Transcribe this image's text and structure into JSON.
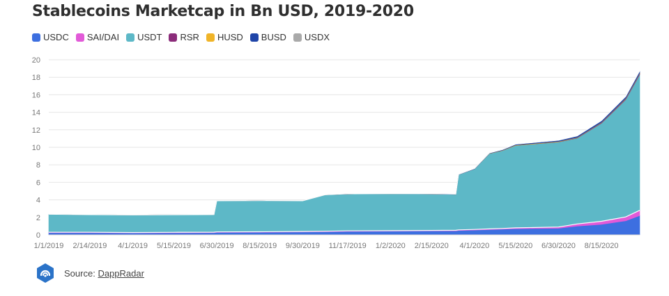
{
  "title": "Stablecoins Marketcap in Bn USD, 2019-2020",
  "source": {
    "label": "Source:",
    "link_text": "DappRadar"
  },
  "colors": {
    "USDC": "#3d6fe0",
    "SAI/DAI": "#e25ad8",
    "USDT": "#5db8c7",
    "RSR": "#8b2c7a",
    "HUSD": "#f0b428",
    "BUSD": "#1f45a8",
    "USDX": "#a9a9a9",
    "logo": "#2b73c8"
  },
  "chart_data": {
    "type": "area",
    "title": "Stablecoins Marketcap in Bn USD, 2019-2020",
    "xlabel": "",
    "ylabel": "",
    "stacked": true,
    "ylim": [
      0,
      20
    ],
    "yticks": [
      "0",
      "2",
      "4",
      "6",
      "8",
      "10",
      "12",
      "14",
      "16",
      "18",
      "20"
    ],
    "xticks": [
      "1/1/2019",
      "2/14/2019",
      "4/1/2019",
      "5/15/2019",
      "6/30/2019",
      "8/15/2019",
      "9/30/2019",
      "11/17/2019",
      "1/2/2020",
      "2/15/2020",
      "4/1/2020",
      "5/15/2020",
      "6/30/2020",
      "8/15/2020"
    ],
    "legend": [
      "USDC",
      "SAI/DAI",
      "USDT",
      "RSR",
      "HUSD",
      "BUSD",
      "USDX"
    ],
    "legend_position": "top-left",
    "grid": true,
    "x": [
      "1/1/2019",
      "2/14/2019",
      "4/1/2019",
      "5/15/2019",
      "6/27/2019",
      "6/30/2019",
      "8/15/2019",
      "9/30/2019",
      "10/24/2019",
      "11/17/2019",
      "1/2/2020",
      "2/15/2020",
      "3/12/2020",
      "3/15/2020",
      "4/1/2020",
      "4/17/2020",
      "5/1/2020",
      "5/15/2020",
      "6/30/2020",
      "7/20/2020",
      "8/15/2020",
      "9/10/2020",
      "9/25/2020"
    ],
    "series": [
      {
        "name": "USDC",
        "values": [
          0.25,
          0.25,
          0.22,
          0.23,
          0.25,
          0.28,
          0.3,
          0.33,
          0.35,
          0.4,
          0.42,
          0.45,
          0.45,
          0.5,
          0.55,
          0.6,
          0.65,
          0.7,
          0.75,
          1.0,
          1.2,
          1.6,
          2.2
        ]
      },
      {
        "name": "SAI/DAI",
        "values": [
          0.05,
          0.05,
          0.05,
          0.06,
          0.06,
          0.06,
          0.06,
          0.06,
          0.06,
          0.06,
          0.06,
          0.06,
          0.07,
          0.07,
          0.07,
          0.08,
          0.08,
          0.1,
          0.15,
          0.25,
          0.35,
          0.45,
          0.6
        ]
      },
      {
        "name": "USDT",
        "values": [
          2.05,
          2.0,
          2.0,
          2.0,
          2.0,
          3.55,
          3.55,
          3.5,
          4.15,
          4.2,
          4.2,
          4.15,
          4.1,
          6.3,
          6.9,
          8.6,
          8.9,
          9.4,
          9.7,
          9.8,
          11.2,
          13.4,
          15.5
        ]
      },
      {
        "name": "RSR",
        "values": [
          0,
          0,
          0,
          0,
          0,
          0,
          0,
          0,
          0,
          0,
          0,
          0,
          0,
          0,
          0,
          0,
          0,
          0,
          0.02,
          0.03,
          0.05,
          0.08,
          0.1
        ]
      },
      {
        "name": "HUSD",
        "values": [
          0,
          0,
          0,
          0,
          0,
          0,
          0,
          0,
          0,
          0,
          0,
          0,
          0,
          0,
          0,
          0.02,
          0.03,
          0.05,
          0.05,
          0.05,
          0.05,
          0.06,
          0.06
        ]
      },
      {
        "name": "BUSD",
        "values": [
          0,
          0,
          0,
          0,
          0,
          0,
          0,
          0,
          0.01,
          0.02,
          0.02,
          0.03,
          0.03,
          0.04,
          0.05,
          0.06,
          0.08,
          0.1,
          0.12,
          0.15,
          0.18,
          0.2,
          0.25
        ]
      },
      {
        "name": "USDX",
        "values": [
          0,
          0,
          0,
          0,
          0,
          0,
          0,
          0,
          0,
          0,
          0,
          0,
          0,
          0,
          0,
          0,
          0,
          0.01,
          0.01,
          0.01,
          0.02,
          0.02,
          0.02
        ]
      }
    ]
  }
}
